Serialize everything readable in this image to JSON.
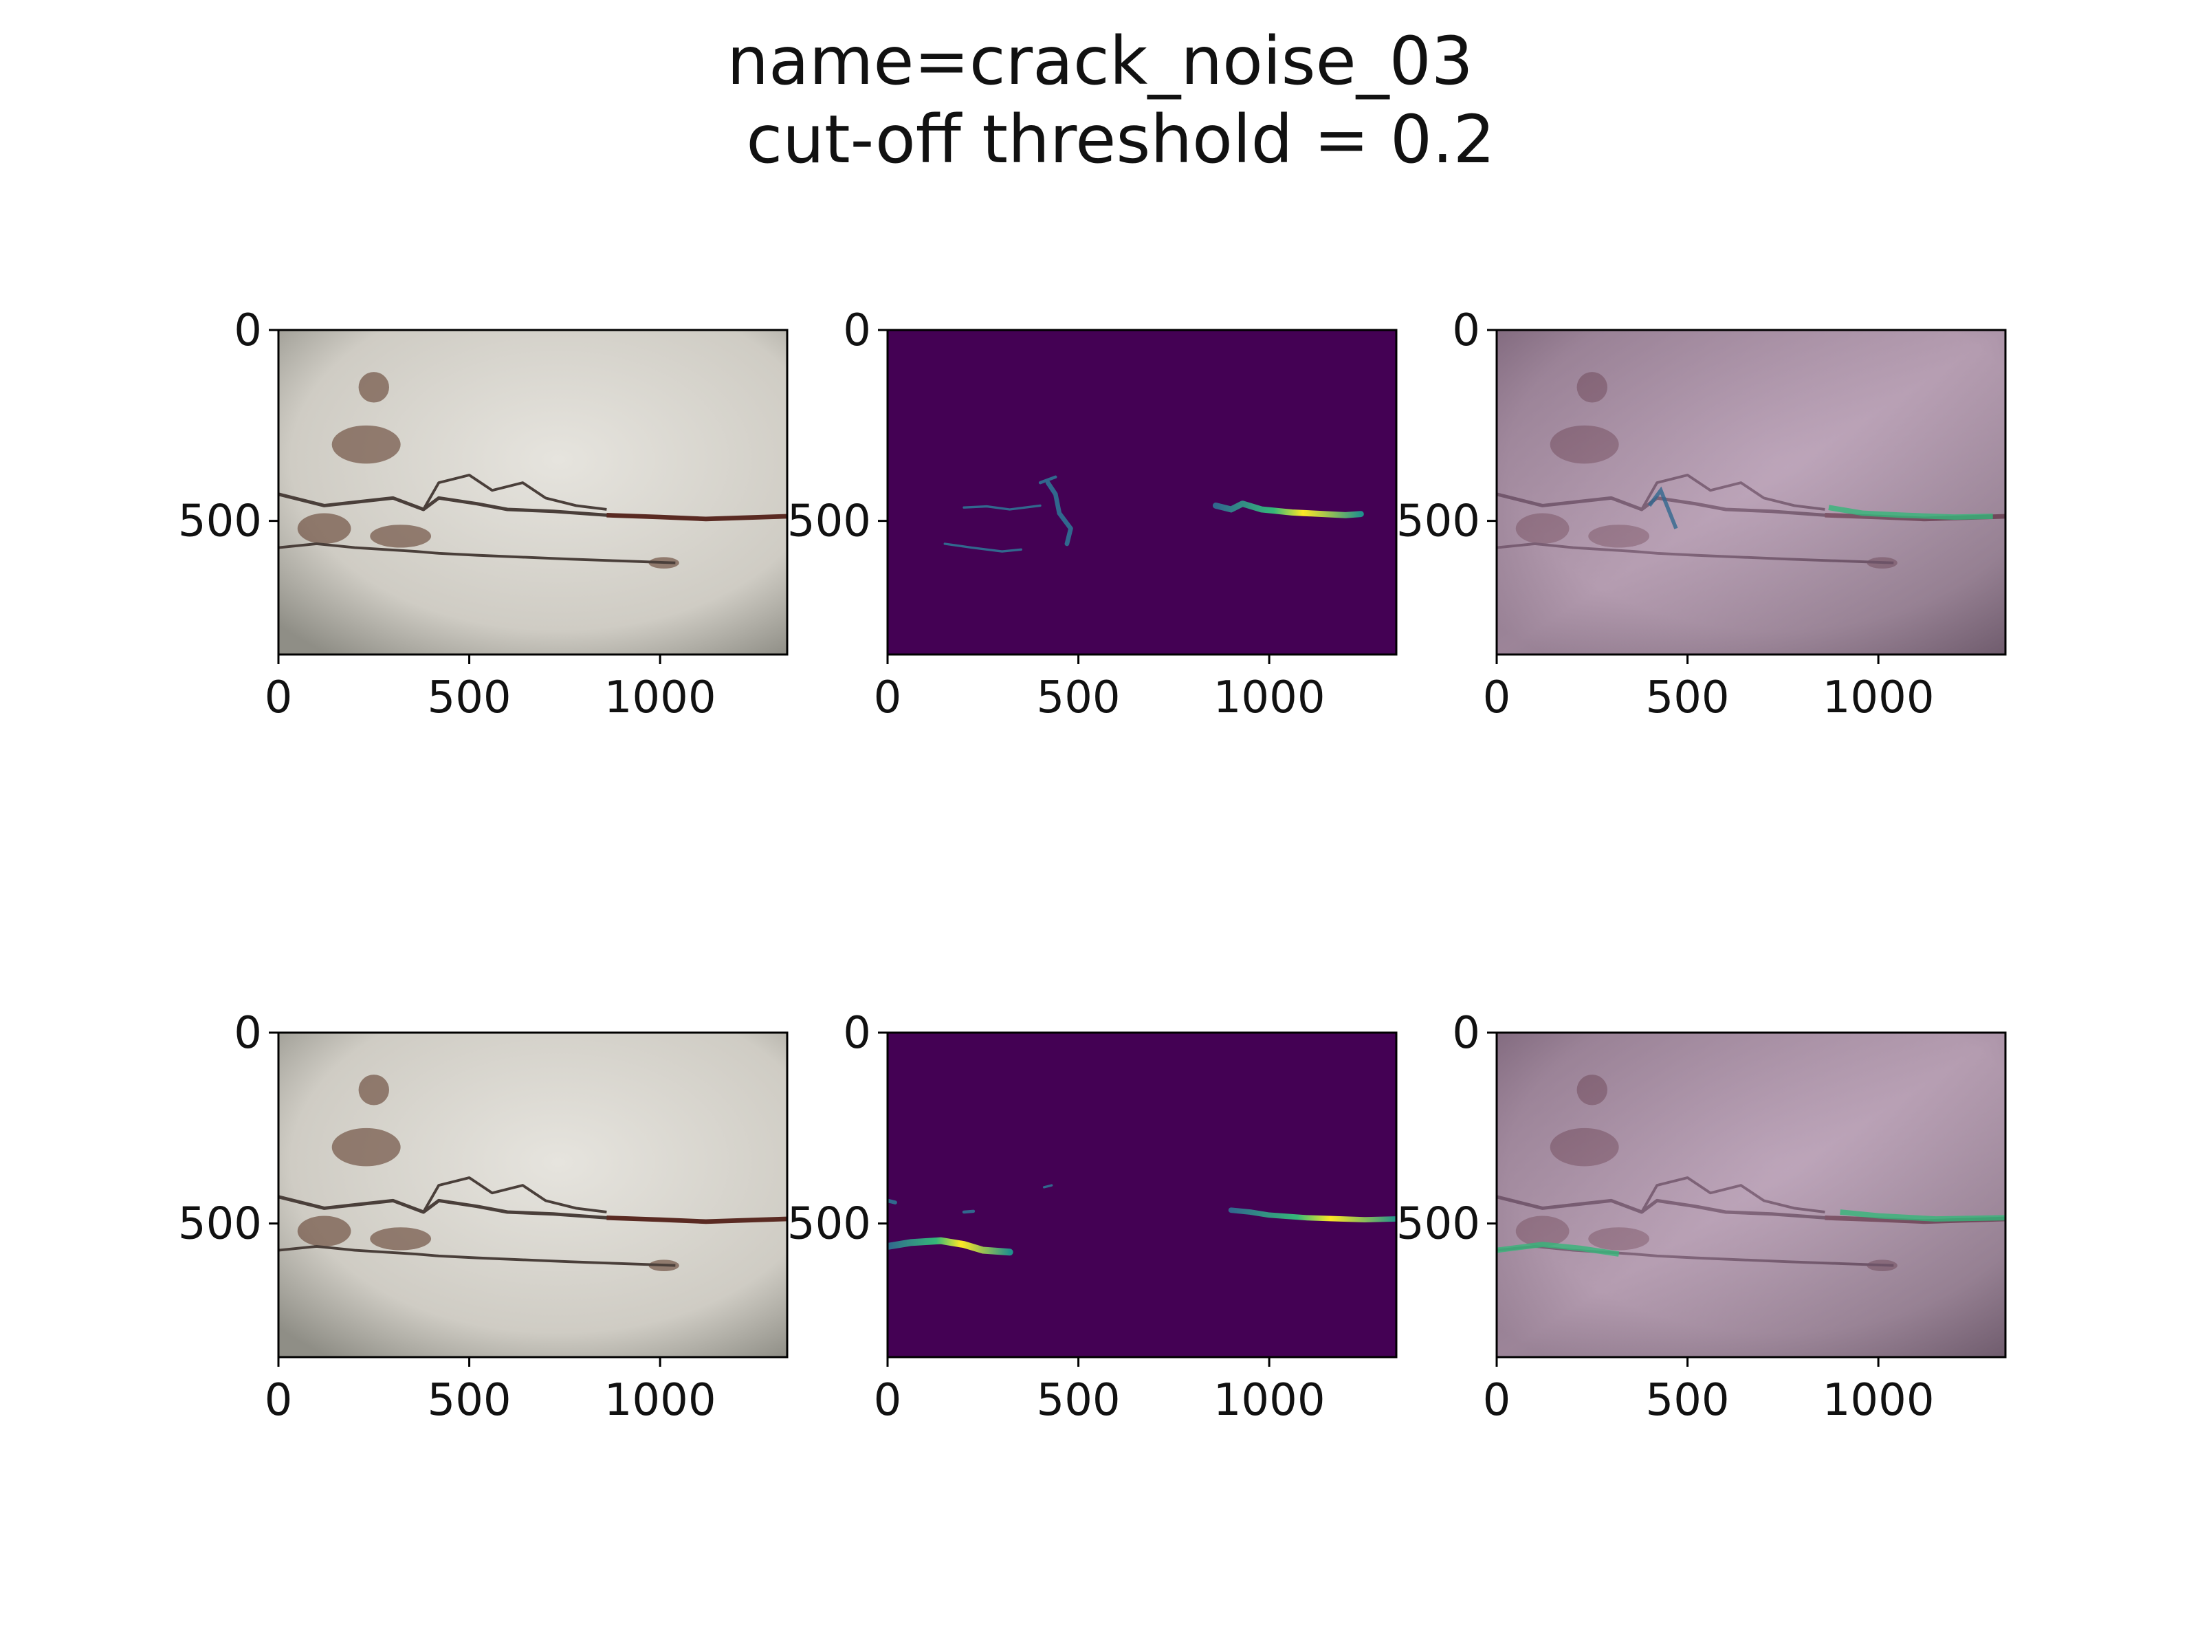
{
  "figure": {
    "title_line1": "name=crack_noise_03",
    "title_line2": "cut-off threshold = 0.2"
  },
  "chart_data": {
    "type": "image-grid",
    "rows": 2,
    "cols": 3,
    "image_extent": {
      "x": [
        0,
        1333
      ],
      "y": [
        0,
        850
      ]
    },
    "x_ticks": [
      0,
      500,
      1000
    ],
    "y_ticks": [
      0,
      500
    ],
    "x_tick_labels": [
      "0",
      "500",
      "1000"
    ],
    "y_tick_labels": [
      "0",
      "500"
    ],
    "panels": [
      {
        "row": 0,
        "col": 0,
        "kind": "original",
        "crack_mask": "top"
      },
      {
        "row": 0,
        "col": 1,
        "kind": "heatmap",
        "colormap": "viridis",
        "crack_mask": "top"
      },
      {
        "row": 0,
        "col": 2,
        "kind": "overlay",
        "crack_mask": "top"
      },
      {
        "row": 1,
        "col": 0,
        "kind": "original",
        "crack_mask": "bottom"
      },
      {
        "row": 1,
        "col": 1,
        "kind": "heatmap",
        "colormap": "viridis",
        "crack_mask": "bottom"
      },
      {
        "row": 1,
        "col": 2,
        "kind": "overlay",
        "crack_mask": "bottom"
      }
    ],
    "colors": {
      "wall_light": "#d9d7d1",
      "wall_dark": "#8f8e86",
      "crack": "#4a3f3a",
      "rust": "#6a4a3a",
      "viridis_bg": "#440154",
      "viridis_low": "#31688e",
      "viridis_mid": "#35b779",
      "viridis_high": "#fde725",
      "overlay_tint": "#8a4f88"
    }
  }
}
